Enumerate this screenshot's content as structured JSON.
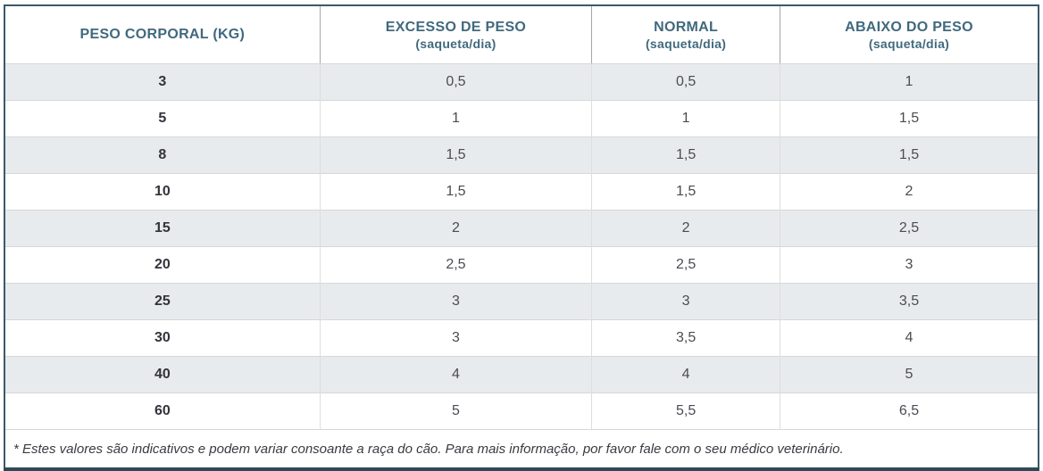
{
  "table": {
    "columns": [
      {
        "title": "PESO CORPORAL (KG)",
        "subtitle": ""
      },
      {
        "title": "EXCESSO DE PESO",
        "subtitle": "(saqueta/dia)"
      },
      {
        "title": "NORMAL",
        "subtitle": "(saqueta/dia)"
      },
      {
        "title": "ABAIXO DO PESO",
        "subtitle": "(saqueta/dia)"
      }
    ],
    "rows": [
      [
        "3",
        "0,5",
        "0,5",
        "1"
      ],
      [
        "5",
        "1",
        "1",
        "1,5"
      ],
      [
        "8",
        "1,5",
        "1,5",
        "1,5"
      ],
      [
        "10",
        "1,5",
        "1,5",
        "2"
      ],
      [
        "15",
        "2",
        "2",
        "2,5"
      ],
      [
        "20",
        "2,5",
        "2,5",
        "3"
      ],
      [
        "25",
        "3",
        "3",
        "3,5"
      ],
      [
        "30",
        "3",
        "3,5",
        "4"
      ],
      [
        "40",
        "4",
        "4",
        "5"
      ],
      [
        "60",
        "5",
        "5,5",
        "6,5"
      ]
    ],
    "footnote": "* Estes valores são indicativos e podem variar consoante a raça do cão. Para mais informação, por favor fale com o seu médico veterinário."
  },
  "colors": {
    "header_text": "#40697E",
    "outer_border": "#3A5A68",
    "bottom_border": "#2E4A57",
    "stripe_background": "#E8EBEE",
    "row_divider": "#D7D7D7",
    "cell_divider": "#DEDED8",
    "header_divider": "#A6A6A6",
    "weight_text": "#33333B",
    "value_text": "#4B4B53",
    "footnote_text": "#3A3A42"
  },
  "chart_data": {
    "type": "table",
    "title": "",
    "columns": [
      "PESO CORPORAL (KG)",
      "EXCESSO DE PESO (saqueta/dia)",
      "NORMAL (saqueta/dia)",
      "ABAIXO DO PESO (saqueta/dia)"
    ],
    "weights_kg": [
      3,
      5,
      8,
      10,
      15,
      20,
      25,
      30,
      40,
      60
    ],
    "series": [
      {
        "name": "EXCESSO DE PESO (saqueta/dia)",
        "values": [
          0.5,
          1,
          1.5,
          1.5,
          2,
          2.5,
          3,
          3,
          4,
          5
        ]
      },
      {
        "name": "NORMAL (saqueta/dia)",
        "values": [
          0.5,
          1,
          1.5,
          1.5,
          2,
          2.5,
          3,
          3.5,
          4,
          5.5
        ]
      },
      {
        "name": "ABAIXO DO PESO (saqueta/dia)",
        "values": [
          1,
          1.5,
          1.5,
          2,
          2.5,
          3,
          3.5,
          4,
          5,
          6.5
        ]
      }
    ],
    "footnote": "* Estes valores são indicativos e podem variar consoante a raça do cão. Para mais informação, por favor fale com o seu médico veterinário."
  }
}
